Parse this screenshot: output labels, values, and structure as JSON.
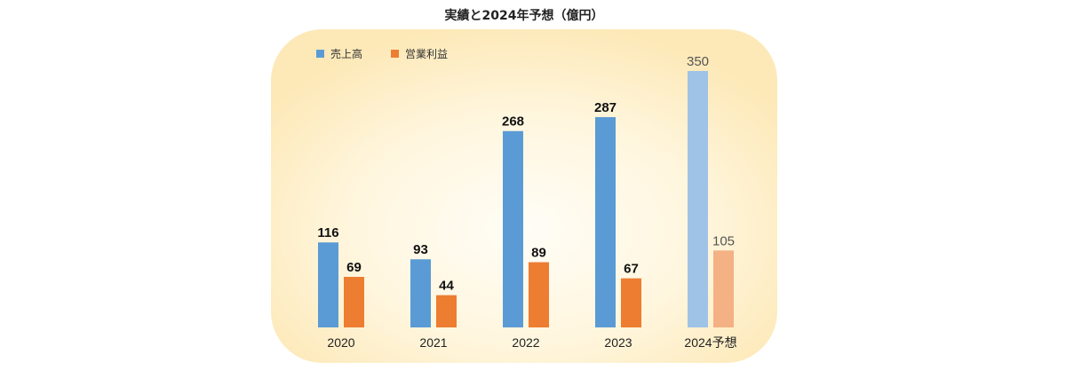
{
  "chart_data": {
    "type": "bar",
    "title": "実績と2024年予想（億円）",
    "categories": [
      "2020",
      "2021",
      "2022",
      "2023",
      "2024予想"
    ],
    "forecast_category_index": 4,
    "series": [
      {
        "name": "売上高",
        "values": [
          116,
          93,
          268,
          287,
          350
        ],
        "color": "#5b9bd5",
        "forecast_color": "#9fc3e7"
      },
      {
        "name": "営業利益",
        "values": [
          69,
          44,
          89,
          67,
          105
        ],
        "color": "#ed7d31",
        "forecast_color": "#f4b183"
      }
    ],
    "ylim": [
      0,
      350
    ],
    "grid": false,
    "legend_position": "top-left",
    "background_color": "#fdf3d6"
  }
}
